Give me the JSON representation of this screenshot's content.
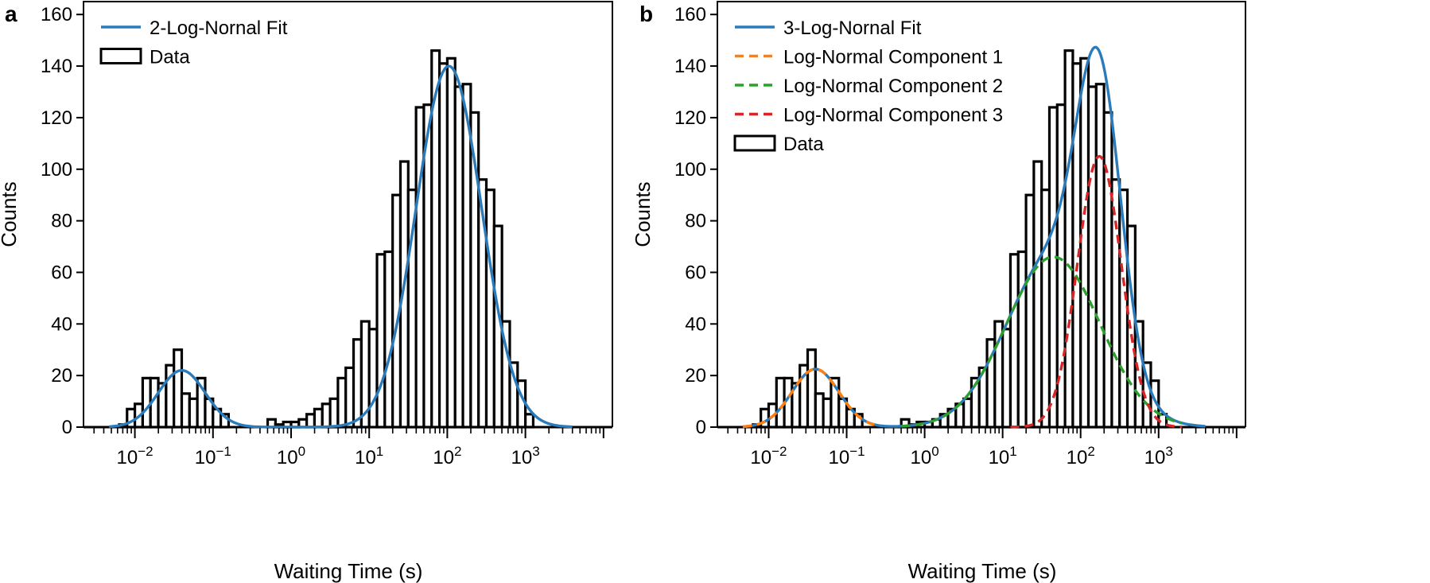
{
  "chart_data": [
    {
      "type": "bar",
      "panel": "a",
      "xlabel": "Waiting Time (s)",
      "ylabel": "Counts",
      "xscale": "log",
      "xlim": [
        0.0022,
        13000
      ],
      "ylim": [
        0,
        165
      ],
      "yticks": [
        0,
        20,
        40,
        60,
        80,
        100,
        120,
        140,
        160
      ],
      "xticks": [
        {
          "value": 0.01,
          "base": "10",
          "exp": "−2"
        },
        {
          "value": 0.1,
          "base": "10",
          "exp": "−1"
        },
        {
          "value": 1,
          "base": "10",
          "exp": "0"
        },
        {
          "value": 10,
          "base": "10",
          "exp": "1"
        },
        {
          "value": 100,
          "base": "10",
          "exp": "2"
        },
        {
          "value": 1000,
          "base": "10",
          "exp": "3"
        }
      ],
      "legend_position": "top-left",
      "histogram": {
        "name": "Data",
        "bin_width_decades": 0.1,
        "bins": [
          {
            "lo": -2.2,
            "count": 1
          },
          {
            "lo": -2.1,
            "count": 7
          },
          {
            "lo": -2.0,
            "count": 9
          },
          {
            "lo": -1.9,
            "count": 19
          },
          {
            "lo": -1.8,
            "count": 19
          },
          {
            "lo": -1.7,
            "count": 17
          },
          {
            "lo": -1.6,
            "count": 24
          },
          {
            "lo": -1.5,
            "count": 30
          },
          {
            "lo": -1.4,
            "count": 13
          },
          {
            "lo": -1.3,
            "count": 11
          },
          {
            "lo": -1.2,
            "count": 19
          },
          {
            "lo": -1.1,
            "count": 11
          },
          {
            "lo": -1.0,
            "count": 7
          },
          {
            "lo": -0.9,
            "count": 5
          },
          {
            "lo": -0.3,
            "count": 3
          },
          {
            "lo": -0.2,
            "count": 1
          },
          {
            "lo": -0.1,
            "count": 2
          },
          {
            "lo": 0.0,
            "count": 2
          },
          {
            "lo": 0.1,
            "count": 3
          },
          {
            "lo": 0.2,
            "count": 5
          },
          {
            "lo": 0.3,
            "count": 7
          },
          {
            "lo": 0.4,
            "count": 9
          },
          {
            "lo": 0.5,
            "count": 11
          },
          {
            "lo": 0.6,
            "count": 19
          },
          {
            "lo": 0.7,
            "count": 23
          },
          {
            "lo": 0.8,
            "count": 34
          },
          {
            "lo": 0.9,
            "count": 41
          },
          {
            "lo": 1.0,
            "count": 38
          },
          {
            "lo": 1.1,
            "count": 67
          },
          {
            "lo": 1.2,
            "count": 68
          },
          {
            "lo": 1.3,
            "count": 90
          },
          {
            "lo": 1.4,
            "count": 103
          },
          {
            "lo": 1.5,
            "count": 92
          },
          {
            "lo": 1.6,
            "count": 124
          },
          {
            "lo": 1.7,
            "count": 125
          },
          {
            "lo": 1.8,
            "count": 146
          },
          {
            "lo": 1.9,
            "count": 141
          },
          {
            "lo": 2.0,
            "count": 143
          },
          {
            "lo": 2.1,
            "count": 132
          },
          {
            "lo": 2.2,
            "count": 133
          },
          {
            "lo": 2.3,
            "count": 122
          },
          {
            "lo": 2.4,
            "count": 96
          },
          {
            "lo": 2.5,
            "count": 92
          },
          {
            "lo": 2.6,
            "count": 78
          },
          {
            "lo": 2.7,
            "count": 41
          },
          {
            "lo": 2.8,
            "count": 25
          },
          {
            "lo": 2.9,
            "count": 18
          },
          {
            "lo": 3.0,
            "count": 5
          }
        ]
      },
      "curves": [
        {
          "name": "2-Log-Nornal Fit",
          "color": "#2b7bba",
          "dashed": false,
          "xrange_log10": [
            -2.33,
            3.6
          ],
          "components": [
            {
              "amp": 22,
              "mu": -1.4,
              "sigma": 0.3
            },
            {
              "amp": 140,
              "mu": 2.02,
              "sigma": 0.42
            }
          ]
        }
      ],
      "legend": [
        {
          "label": "2-Log-Nornal Fit",
          "kind": "line",
          "color": "#2b7bba",
          "dashed": false
        },
        {
          "label": "Data",
          "kind": "box"
        }
      ]
    },
    {
      "type": "bar",
      "panel": "b",
      "xlabel": "Waiting Time (s)",
      "ylabel": "Counts",
      "xscale": "log",
      "xlim": [
        0.0022,
        13000
      ],
      "ylim": [
        0,
        165
      ],
      "yticks": [
        0,
        20,
        40,
        60,
        80,
        100,
        120,
        140,
        160
      ],
      "xticks": [
        {
          "value": 0.01,
          "base": "10",
          "exp": "−2"
        },
        {
          "value": 0.1,
          "base": "10",
          "exp": "−1"
        },
        {
          "value": 1,
          "base": "10",
          "exp": "0"
        },
        {
          "value": 10,
          "base": "10",
          "exp": "1"
        },
        {
          "value": 100,
          "base": "10",
          "exp": "2"
        },
        {
          "value": 1000,
          "base": "10",
          "exp": "3"
        }
      ],
      "legend_position": "top-left",
      "histogram": {
        "name": "Data",
        "bin_width_decades": 0.1,
        "bins": [
          {
            "lo": -2.2,
            "count": 1
          },
          {
            "lo": -2.1,
            "count": 7
          },
          {
            "lo": -2.0,
            "count": 9
          },
          {
            "lo": -1.9,
            "count": 19
          },
          {
            "lo": -1.8,
            "count": 19
          },
          {
            "lo": -1.7,
            "count": 17
          },
          {
            "lo": -1.6,
            "count": 24
          },
          {
            "lo": -1.5,
            "count": 30
          },
          {
            "lo": -1.4,
            "count": 13
          },
          {
            "lo": -1.3,
            "count": 11
          },
          {
            "lo": -1.2,
            "count": 19
          },
          {
            "lo": -1.1,
            "count": 11
          },
          {
            "lo": -1.0,
            "count": 7
          },
          {
            "lo": -0.9,
            "count": 5
          },
          {
            "lo": -0.3,
            "count": 3
          },
          {
            "lo": -0.2,
            "count": 1
          },
          {
            "lo": -0.1,
            "count": 2
          },
          {
            "lo": 0.0,
            "count": 2
          },
          {
            "lo": 0.1,
            "count": 3
          },
          {
            "lo": 0.2,
            "count": 5
          },
          {
            "lo": 0.3,
            "count": 7
          },
          {
            "lo": 0.4,
            "count": 9
          },
          {
            "lo": 0.5,
            "count": 11
          },
          {
            "lo": 0.6,
            "count": 19
          },
          {
            "lo": 0.7,
            "count": 23
          },
          {
            "lo": 0.8,
            "count": 34
          },
          {
            "lo": 0.9,
            "count": 41
          },
          {
            "lo": 1.0,
            "count": 38
          },
          {
            "lo": 1.1,
            "count": 67
          },
          {
            "lo": 1.2,
            "count": 68
          },
          {
            "lo": 1.3,
            "count": 90
          },
          {
            "lo": 1.4,
            "count": 103
          },
          {
            "lo": 1.5,
            "count": 92
          },
          {
            "lo": 1.6,
            "count": 124
          },
          {
            "lo": 1.7,
            "count": 125
          },
          {
            "lo": 1.8,
            "count": 146
          },
          {
            "lo": 1.9,
            "count": 141
          },
          {
            "lo": 2.0,
            "count": 143
          },
          {
            "lo": 2.1,
            "count": 132
          },
          {
            "lo": 2.2,
            "count": 133
          },
          {
            "lo": 2.3,
            "count": 122
          },
          {
            "lo": 2.4,
            "count": 96
          },
          {
            "lo": 2.5,
            "count": 92
          },
          {
            "lo": 2.6,
            "count": 78
          },
          {
            "lo": 2.7,
            "count": 41
          },
          {
            "lo": 2.8,
            "count": 25
          },
          {
            "lo": 2.9,
            "count": 18
          },
          {
            "lo": 3.0,
            "count": 5
          }
        ]
      },
      "curves": [
        {
          "name": "3-Log-Nornal Fit",
          "color": "#2b7bba",
          "dashed": false,
          "xrange_log10": [
            -2.33,
            3.6
          ],
          "components": [
            {
              "amp": 22.5,
              "mu": -1.4,
              "sigma": 0.3
            },
            {
              "amp": 66,
              "mu": 1.65,
              "sigma": 0.6
            },
            {
              "amp": 105,
              "mu": 2.24,
              "sigma": 0.28
            }
          ]
        },
        {
          "name": "Log-Normal Component 1",
          "color": "#ff7f0e",
          "dashed": true,
          "xrange_log10": [
            -2.33,
            -0.6
          ],
          "components": [
            {
              "amp": 22.5,
              "mu": -1.4,
              "sigma": 0.3
            }
          ]
        },
        {
          "name": "Log-Normal Component 2",
          "color": "#2ca02c",
          "dashed": true,
          "xrange_log10": [
            -0.3,
            3.3
          ],
          "components": [
            {
              "amp": 66,
              "mu": 1.65,
              "sigma": 0.6
            }
          ]
        },
        {
          "name": "Log-Normal Component 3",
          "color": "#d62728",
          "dashed": true,
          "xrange_log10": [
            1.1,
            3.3
          ],
          "components": [
            {
              "amp": 105,
              "mu": 2.24,
              "sigma": 0.28
            }
          ]
        }
      ],
      "legend": [
        {
          "label": "3-Log-Nornal Fit",
          "kind": "line",
          "color": "#2b7bba",
          "dashed": false
        },
        {
          "label": "Log-Normal Component 1",
          "kind": "line",
          "color": "#ff7f0e",
          "dashed": true
        },
        {
          "label": "Log-Normal Component 2",
          "kind": "line",
          "color": "#2ca02c",
          "dashed": true
        },
        {
          "label": "Log-Normal Component 3",
          "kind": "line",
          "color": "#d62728",
          "dashed": true
        },
        {
          "label": "Data",
          "kind": "box"
        }
      ]
    }
  ]
}
